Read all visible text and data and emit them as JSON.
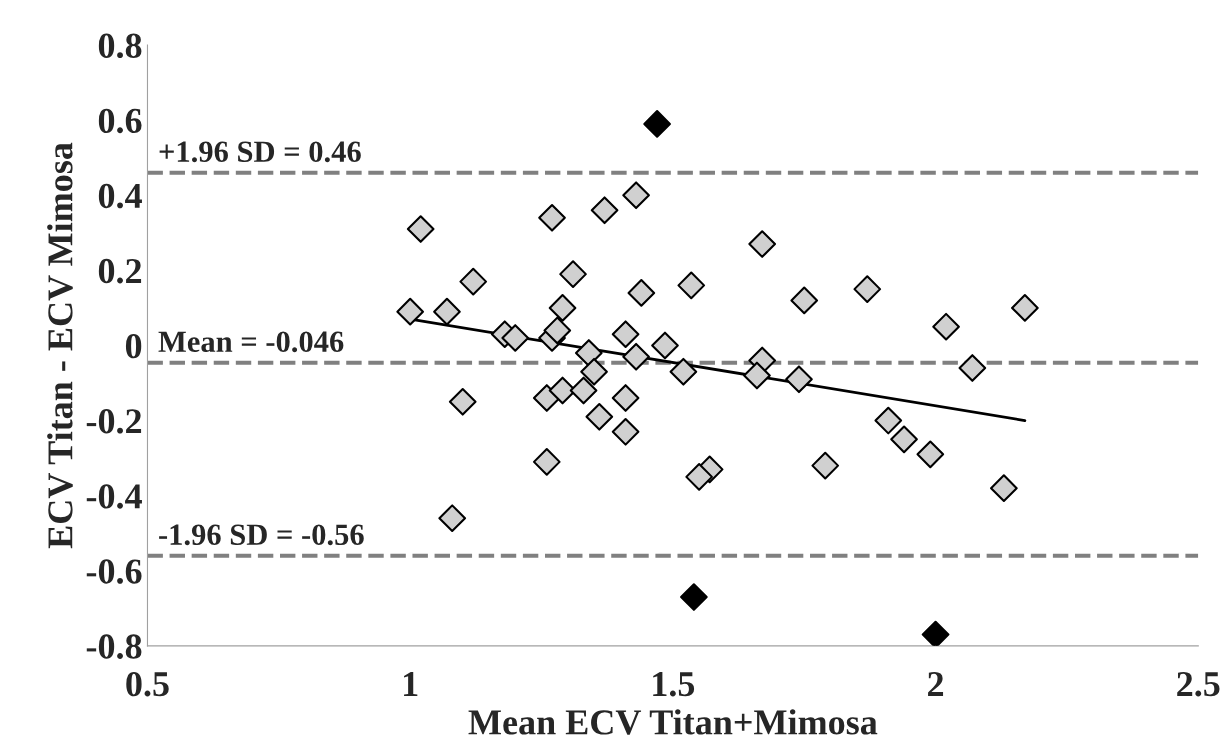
{
  "chart_data": {
    "type": "scatter",
    "xlabel": "Mean ECV Titan+Mimosa",
    "ylabel": "ECV Titan - ECV Mimosa",
    "xlim": [
      0.5,
      2.5
    ],
    "xticks": [
      0.5,
      1,
      1.5,
      2,
      2.5
    ],
    "ylim": [
      -0.8,
      0.8
    ],
    "yticks": [
      -0.8,
      -0.6,
      -0.4,
      -0.2,
      0,
      0.2,
      0.4,
      0.6,
      0.8
    ],
    "grid": false,
    "legend": false,
    "marker": "diamond",
    "series": [
      {
        "color": "#d0d0d0",
        "x": [
          1.0,
          1.02,
          1.07,
          1.12,
          1.18,
          1.2,
          1.27,
          1.27,
          1.28,
          1.31,
          1.29,
          1.37,
          1.34,
          1.35,
          1.43,
          1.44,
          1.67,
          1.535,
          1.75,
          1.87,
          2.02,
          2.17,
          1.41,
          1.485,
          1.43,
          1.52,
          1.67,
          1.66,
          1.74,
          2.07,
          1.1,
          1.26,
          1.29,
          1.33,
          1.36,
          1.41,
          1.41,
          1.26,
          1.08,
          1.57,
          1.55,
          1.79,
          1.91,
          1.94,
          1.99,
          2.13
        ],
        "values": [
          0.09,
          0.31,
          0.09,
          0.17,
          0.03,
          0.02,
          0.34,
          0.02,
          0.04,
          0.19,
          0.1,
          0.36,
          -0.02,
          -0.07,
          0.4,
          0.14,
          0.27,
          0.16,
          0.12,
          0.15,
          0.05,
          0.1,
          0.03,
          0.0,
          -0.03,
          -0.07,
          -0.04,
          -0.08,
          -0.09,
          -0.06,
          -0.15,
          -0.14,
          -0.12,
          -0.12,
          -0.19,
          -0.23,
          -0.14,
          -0.31,
          -0.46,
          -0.33,
          -0.35,
          -0.32,
          -0.2,
          -0.25,
          -0.29,
          -0.38
        ]
      },
      {
        "color": "#000000",
        "x": [
          1.47,
          1.54,
          2.0
        ],
        "values": [
          0.59,
          -0.67,
          -0.77
        ]
      },
      {
        "type": "line",
        "color": "#000000",
        "marker": "none",
        "line_style": "solid",
        "x": [
          1.0,
          2.17
        ],
        "values": [
          0.07,
          -0.2
        ]
      }
    ],
    "ref_lines": [
      {
        "axis": "y",
        "value": 0.46,
        "label": "+1.96 SD = 0.46",
        "color": "#808080",
        "line_style": "dashed"
      },
      {
        "axis": "y",
        "value": -0.046,
        "label": "Mean = -0.046",
        "color": "#808080",
        "line_style": "dashed"
      },
      {
        "axis": "y",
        "value": -0.56,
        "label": "-1.96 SD = -0.56",
        "color": "#808080",
        "line_style": "dashed"
      }
    ]
  }
}
